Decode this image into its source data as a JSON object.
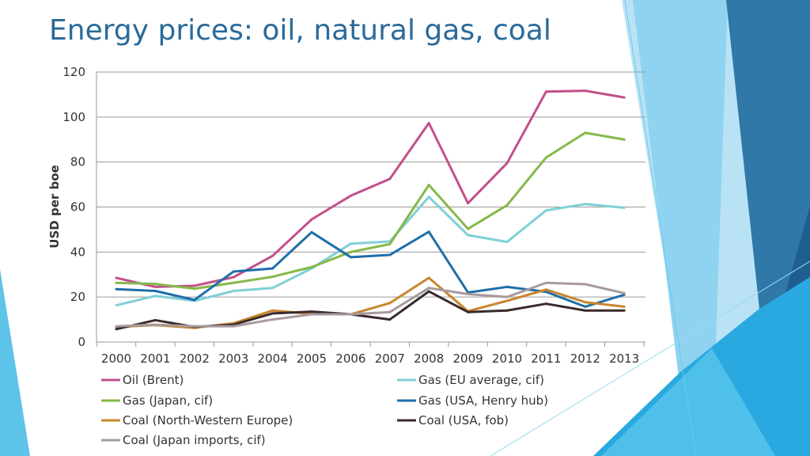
{
  "slide": {
    "title": "Energy prices: oil, natural gas, coal"
  },
  "chart_data": {
    "type": "line",
    "title": "",
    "xlabel": "",
    "ylabel": "USD per boe",
    "ylim": [
      0,
      120
    ],
    "yticks": [
      0,
      20,
      40,
      60,
      80,
      100,
      120
    ],
    "grid": true,
    "legend_position": "bottom",
    "x": [
      "2000",
      "2001",
      "2002",
      "2003",
      "2004",
      "2005",
      "2006",
      "2007",
      "2008",
      "2009",
      "2010",
      "2011",
      "2012",
      "2013"
    ],
    "series": [
      {
        "name": "Oil (Brent)",
        "color": "#c2508a",
        "values": [
          28.5,
          24.5,
          25,
          28.8,
          38.3,
          54.5,
          65,
          72.5,
          97.3,
          61.7,
          79.5,
          111.3,
          111.7,
          108.7
        ]
      },
      {
        "name": "Gas (EU average, cif)",
        "color": "#7fd0d6",
        "values": [
          16.3,
          20.5,
          18.3,
          22.7,
          24,
          32.7,
          43.7,
          44.7,
          64.5,
          47.5,
          44.5,
          58.5,
          61.3,
          59.7
        ]
      },
      {
        "name": "Gas (Japan, cif)",
        "color": "#86b84a",
        "values": [
          26.3,
          25.8,
          23.7,
          26.3,
          29,
          33.3,
          40,
          43.5,
          69.8,
          50.3,
          60.8,
          82,
          93,
          90
        ]
      },
      {
        "name": "Gas (USA, Henry hub)",
        "color": "#1f6fa8",
        "values": [
          23.5,
          22.7,
          18.7,
          31.3,
          32.7,
          48.8,
          37.7,
          38.7,
          49,
          22,
          24.5,
          22.3,
          15.7,
          21
        ]
      },
      {
        "name": "Coal (North-Western Europe)",
        "color": "#c8862e",
        "values": [
          6.7,
          7.5,
          6.3,
          8.3,
          14,
          12.5,
          12.3,
          17.3,
          28.5,
          13.7,
          18.3,
          23.3,
          17.7,
          15.7
        ]
      },
      {
        "name": "Coal (USA, fob)",
        "color": "#3a2a2a",
        "values": [
          5.7,
          9.7,
          6.7,
          7.7,
          12.7,
          13.5,
          12.3,
          10,
          22.5,
          13.3,
          14,
          17,
          14,
          14
        ]
      },
      {
        "name": "Coal (Japan imports, cif)",
        "color": "#a79a9e",
        "values": [
          7,
          7.7,
          7,
          7,
          10,
          12.3,
          12.3,
          13.3,
          24,
          21.3,
          20,
          26.3,
          25.7,
          21.7
        ]
      }
    ]
  }
}
